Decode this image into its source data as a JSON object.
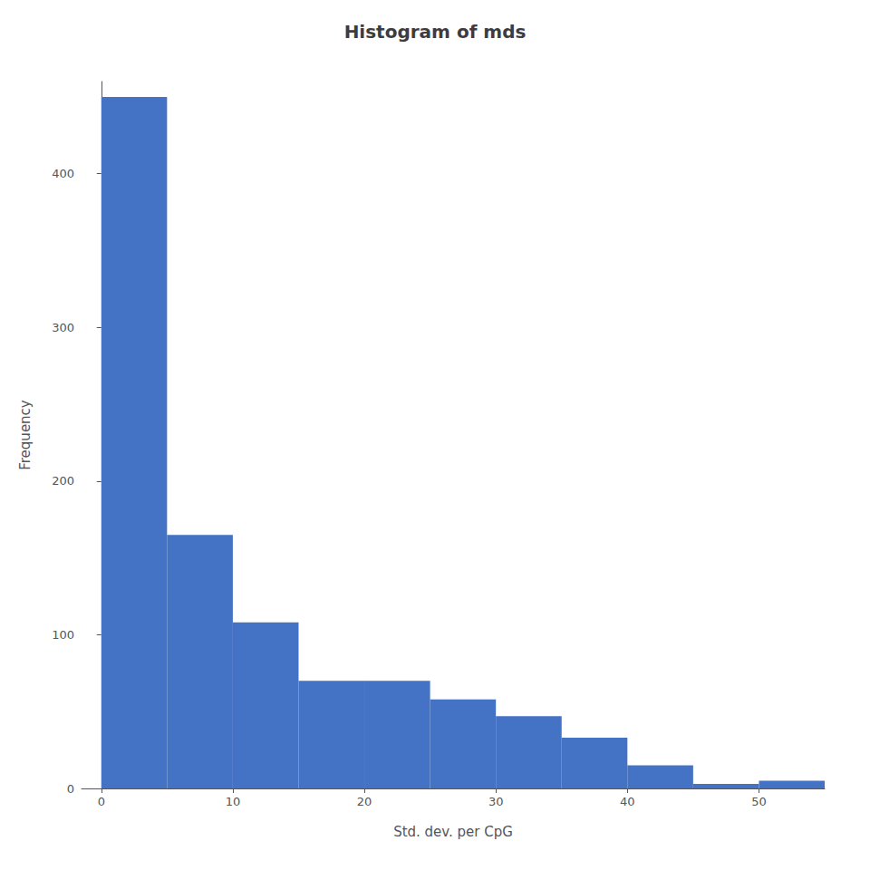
{
  "chart_data": {
    "type": "histogram",
    "title": "Histogram of mds",
    "xlabel": "Std. dev. per CpG",
    "ylabel": "Frequency",
    "bins": [
      0,
      5,
      10,
      15,
      20,
      25,
      30,
      35,
      40,
      45,
      50,
      55
    ],
    "values": [
      450,
      165,
      108,
      70,
      70,
      58,
      47,
      33,
      15,
      3,
      5
    ],
    "color": "#4472C4",
    "xlim": [
      -1.5,
      55
    ],
    "ylim": [
      0,
      460
    ],
    "xticks": [
      0,
      10,
      20,
      30,
      40,
      50
    ],
    "yticks": [
      0,
      100,
      200,
      300,
      400
    ],
    "grid": false
  }
}
